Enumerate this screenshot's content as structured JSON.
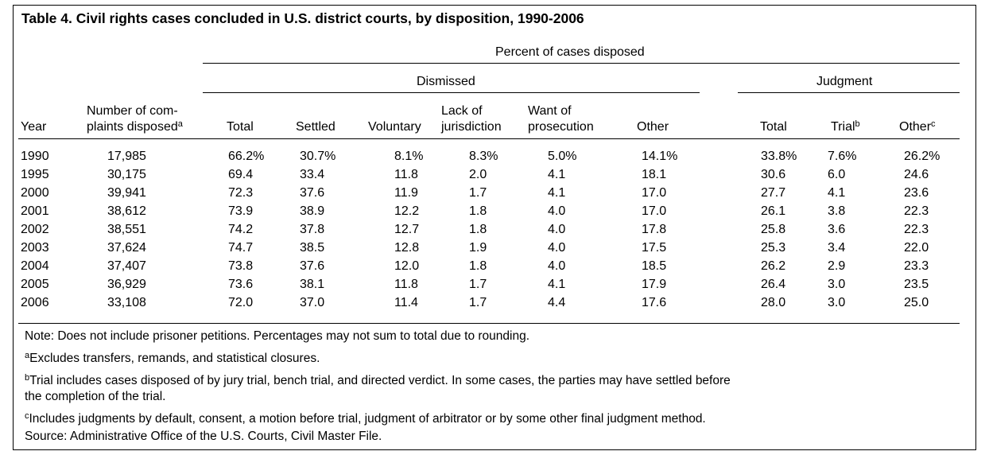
{
  "title": "Table 4. Civil rights cases concluded in U.S. district courts, by disposition, 1990-2006",
  "headers": {
    "percent_group": "Percent of cases disposed",
    "dismissed_group": "Dismissed",
    "judgment_group": "Judgment",
    "year": "Year",
    "complaints_line1": "Number of com-",
    "complaints_line2": "plaints disposed",
    "complaints_sup": "a",
    "dis_total": "Total",
    "settled": "Settled",
    "voluntary": "Voluntary",
    "lack_line1": "Lack of",
    "lack_line2": "jurisdiction",
    "want_line1": "Want of",
    "want_line2": "prosecution",
    "dis_other": "Other",
    "jud_total": "Total",
    "trial": "Trial",
    "trial_sup": "b",
    "jud_other": "Other",
    "jud_other_sup": "c"
  },
  "rows": [
    [
      "1990",
      "17,985",
      "66.2%",
      "30.7%",
      "8.1%",
      "8.3%",
      "5.0%",
      "14.1%",
      "33.8%",
      "7.6%",
      "26.2%"
    ],
    [
      "1995",
      "30,175",
      "69.4",
      "33.4",
      "11.8",
      "2.0",
      "4.1",
      "18.1",
      "30.6",
      "6.0",
      "24.6"
    ],
    [
      "2000",
      "39,941",
      "72.3",
      "37.6",
      "11.9",
      "1.7",
      "4.1",
      "17.0",
      "27.7",
      "4.1",
      "23.6"
    ],
    [
      "2001",
      "38,612",
      "73.9",
      "38.9",
      "12.2",
      "1.8",
      "4.0",
      "17.0",
      "26.1",
      "3.8",
      "22.3"
    ],
    [
      "2002",
      "38,551",
      "74.2",
      "37.8",
      "12.7",
      "1.8",
      "4.0",
      "17.8",
      "25.8",
      "3.6",
      "22.3"
    ],
    [
      "2003",
      "37,624",
      "74.7",
      "38.5",
      "12.8",
      "1.9",
      "4.0",
      "17.5",
      "25.3",
      "3.4",
      "22.0"
    ],
    [
      "2004",
      "37,407",
      "73.8",
      "37.6",
      "12.0",
      "1.8",
      "4.0",
      "18.5",
      "26.2",
      "2.9",
      "23.3"
    ],
    [
      "2005",
      "36,929",
      "73.6",
      "38.1",
      "11.8",
      "1.7",
      "4.1",
      "17.9",
      "26.4",
      "3.0",
      "23.5"
    ],
    [
      "2006",
      "33,108",
      "72.0",
      "37.0",
      "11.4",
      "1.7",
      "4.4",
      "17.6",
      "28.0",
      "3.0",
      "25.0"
    ]
  ],
  "notes": {
    "note": "Note: Does not include prisoner petitions. Percentages may not sum to total due to rounding.",
    "a_sup": "a",
    "a_text": "Excludes transfers, remands, and statistical closures.",
    "b_sup": "b",
    "b_text_line1": "Trial includes cases disposed of by jury trial, bench trial, and directed verdict. In some cases, the parties may have settled before",
    "b_text_line2": "the completion of the trial.",
    "c_sup": "c",
    "c_text": "Includes judgments by default, consent, a motion before trial, judgment of arbitrator or by some other final judgment method.",
    "source": "Source: Administrative Office of the U.S. Courts, Civil Master File."
  }
}
